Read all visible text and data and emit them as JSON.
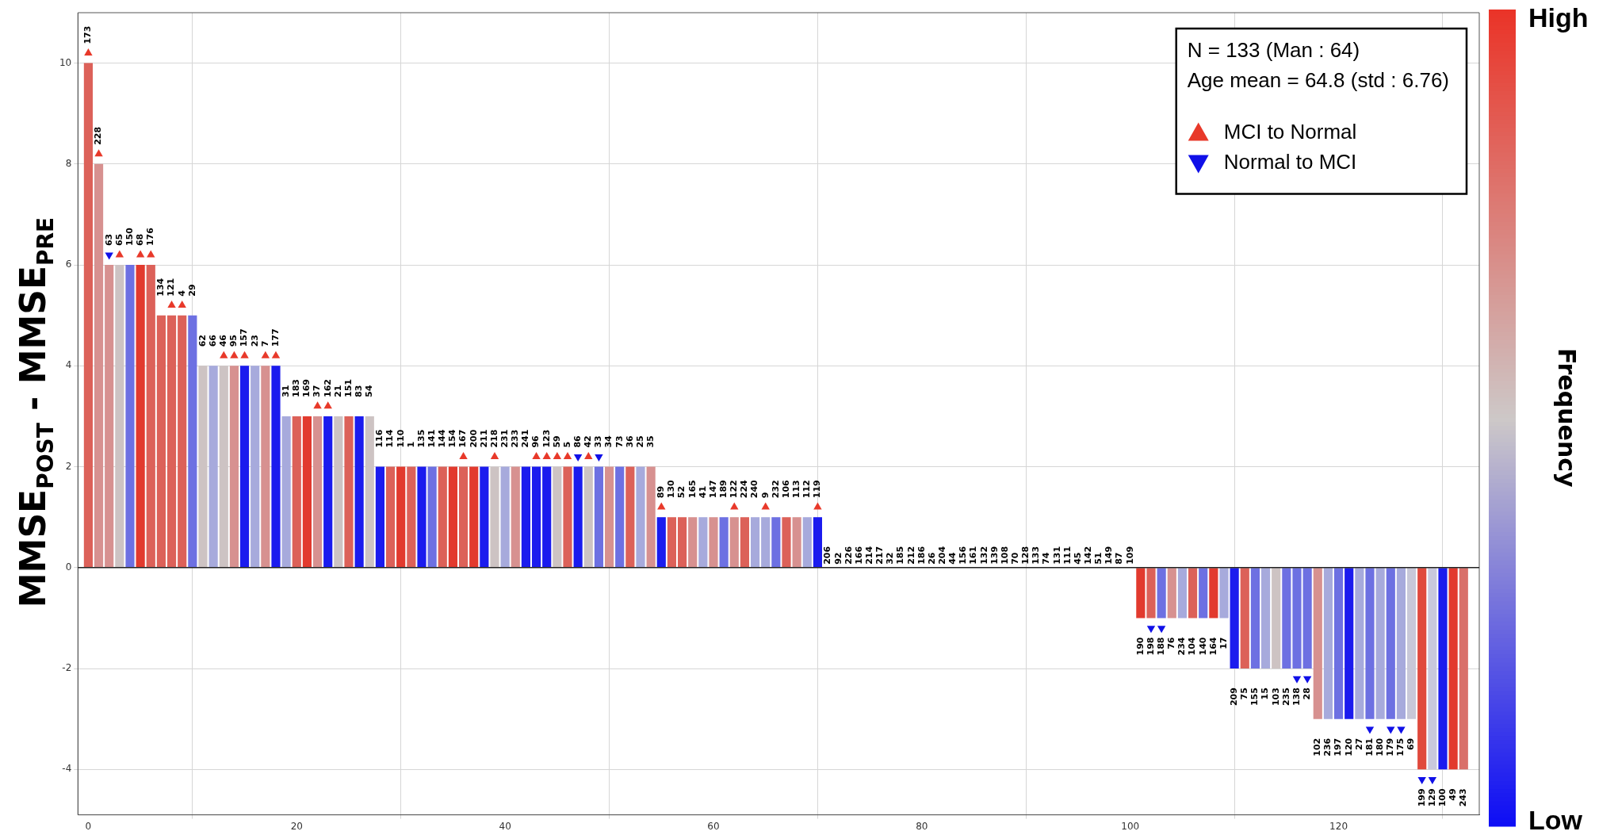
{
  "chart_data": {
    "type": "bar",
    "ylabel": "MMSE$_{POST}$ - MMSE$_{PRE}$",
    "clabel": "Frequency",
    "clim": [
      0,
      1
    ],
    "cticks": [
      {
        "value": 0,
        "label": "Low"
      },
      {
        "value": 1,
        "label": "High"
      }
    ],
    "annotations": [
      "N = 133 (Man : 64)",
      "Age mean = 64.8 (std : 6.76)",
      {
        "text": "173",
        "x": 0,
        "y": 10
      },
      {
        "text": "228",
        "x": 1,
        "y": 8
      },
      {
        "text": "63",
        "x": 2,
        "y": 6
      },
      {
        "text": "65",
        "x": 3,
        "y": 6
      },
      {
        "text": "150",
        "x": 4,
        "y": 6
      },
      {
        "text": "68",
        "x": 5,
        "y": 6
      },
      {
        "text": "176",
        "x": 6,
        "y": 6
      },
      {
        "text": "134",
        "x": 7,
        "y": 5
      },
      {
        "text": "121",
        "x": 8,
        "y": 5
      },
      {
        "text": "4",
        "x": 9,
        "y": 5
      },
      {
        "text": "29",
        "x": 10,
        "y": 5
      },
      {
        "text": "62",
        "x": 11,
        "y": 4
      },
      {
        "text": "66",
        "x": 12,
        "y": 4
      },
      {
        "text": "46",
        "x": 13,
        "y": 4
      },
      {
        "text": "95",
        "x": 14,
        "y": 4
      },
      {
        "text": "157",
        "x": 15,
        "y": 4
      },
      {
        "text": "23",
        "x": 16,
        "y": 4
      },
      {
        "text": "7",
        "x": 17,
        "y": 4
      },
      {
        "text": "177",
        "x": 18,
        "y": 4
      },
      {
        "text": "31",
        "x": 19,
        "y": 3
      },
      {
        "text": "183",
        "x": 20,
        "y": 3
      },
      {
        "text": "169",
        "x": 21,
        "y": 3
      },
      {
        "text": "37",
        "x": 22,
        "y": 3
      },
      {
        "text": "162",
        "x": 23,
        "y": 3
      },
      {
        "text": "21",
        "x": 24,
        "y": 3
      },
      {
        "text": "151",
        "x": 25,
        "y": 3
      },
      {
        "text": "83",
        "x": 26,
        "y": 3
      },
      {
        "text": "54",
        "x": 27,
        "y": 3
      },
      {
        "text": "116",
        "x": 28,
        "y": 2
      },
      {
        "text": "114",
        "x": 29,
        "y": 2
      },
      {
        "text": "110",
        "x": 30,
        "y": 2
      },
      {
        "text": "1",
        "x": 31,
        "y": 2
      },
      {
        "text": "135",
        "x": 32,
        "y": 2
      },
      {
        "text": "141",
        "x": 33,
        "y": 2
      },
      {
        "text": "144",
        "x": 34,
        "y": 2
      },
      {
        "text": "154",
        "x": 35,
        "y": 2
      },
      {
        "text": "167",
        "x": 36,
        "y": 2
      },
      {
        "text": "200",
        "x": 37,
        "y": 2
      },
      {
        "text": "211",
        "x": 38,
        "y": 2
      },
      {
        "text": "218",
        "x": 39,
        "y": 2
      },
      {
        "text": "231",
        "x": 40,
        "y": 2
      },
      {
        "text": "233",
        "x": 41,
        "y": 2
      },
      {
        "text": "241",
        "x": 42,
        "y": 2
      },
      {
        "text": "96",
        "x": 43,
        "y": 2
      },
      {
        "text": "123",
        "x": 44,
        "y": 2
      },
      {
        "text": "59",
        "x": 45,
        "y": 2
      },
      {
        "text": "5",
        "x": 46,
        "y": 2
      },
      {
        "text": "86",
        "x": 47,
        "y": 2
      },
      {
        "text": "42",
        "x": 48,
        "y": 2
      },
      {
        "text": "33",
        "x": 49,
        "y": 2
      },
      {
        "text": "34",
        "x": 50,
        "y": 2
      },
      {
        "text": "73",
        "x": 51,
        "y": 2
      },
      {
        "text": "36",
        "x": 52,
        "y": 2
      },
      {
        "text": "25",
        "x": 53,
        "y": 2
      },
      {
        "text": "35",
        "x": 54,
        "y": 2
      },
      {
        "text": "89",
        "x": 55,
        "y": 1
      },
      {
        "text": "130",
        "x": 56,
        "y": 1
      },
      {
        "text": "52",
        "x": 57,
        "y": 1
      },
      {
        "text": "165",
        "x": 58,
        "y": 1
      },
      {
        "text": "41",
        "x": 59,
        "y": 1
      },
      {
        "text": "147",
        "x": 60,
        "y": 1
      },
      {
        "text": "189",
        "x": 61,
        "y": 1
      },
      {
        "text": "122",
        "x": 62,
        "y": 1
      },
      {
        "text": "224",
        "x": 63,
        "y": 1
      },
      {
        "text": "240",
        "x": 64,
        "y": 1
      },
      {
        "text": "9",
        "x": 65,
        "y": 1
      },
      {
        "text": "232",
        "x": 66,
        "y": 1
      },
      {
        "text": "106",
        "x": 67,
        "y": 1
      },
      {
        "text": "113",
        "x": 68,
        "y": 1
      },
      {
        "text": "112",
        "x": 69,
        "y": 1
      },
      {
        "text": "119",
        "x": 70,
        "y": 1
      },
      {
        "text": "206",
        "x": 71,
        "y": 0
      },
      {
        "text": "92",
        "x": 72,
        "y": 0
      },
      {
        "text": "226",
        "x": 73,
        "y": 0
      },
      {
        "text": "166",
        "x": 74,
        "y": 0
      },
      {
        "text": "214",
        "x": 75,
        "y": 0
      },
      {
        "text": "217",
        "x": 76,
        "y": 0
      },
      {
        "text": "32",
        "x": 77,
        "y": 0
      },
      {
        "text": "185",
        "x": 78,
        "y": 0
      },
      {
        "text": "212",
        "x": 79,
        "y": 0
      },
      {
        "text": "186",
        "x": 80,
        "y": 0
      },
      {
        "text": "26",
        "x": 81,
        "y": 0
      },
      {
        "text": "204",
        "x": 82,
        "y": 0
      },
      {
        "text": "44",
        "x": 83,
        "y": 0
      },
      {
        "text": "156",
        "x": 84,
        "y": 0
      },
      {
        "text": "161",
        "x": 85,
        "y": 0
      },
      {
        "text": "132",
        "x": 86,
        "y": 0
      },
      {
        "text": "139",
        "x": 87,
        "y": 0
      },
      {
        "text": "108",
        "x": 88,
        "y": 0
      },
      {
        "text": "70",
        "x": 89,
        "y": 0
      },
      {
        "text": "128",
        "x": 90,
        "y": 0
      },
      {
        "text": "133",
        "x": 91,
        "y": 0
      },
      {
        "text": "74",
        "x": 92,
        "y": 0
      },
      {
        "text": "131",
        "x": 93,
        "y": 0
      },
      {
        "text": "111",
        "x": 94,
        "y": 0
      },
      {
        "text": "45",
        "x": 95,
        "y": 0
      },
      {
        "text": "142",
        "x": 96,
        "y": 0
      },
      {
        "text": "51",
        "x": 97,
        "y": 0
      },
      {
        "text": "149",
        "x": 98,
        "y": 0
      },
      {
        "text": "87",
        "x": 99,
        "y": 0
      },
      {
        "text": "109",
        "x": 100,
        "y": 0
      },
      {
        "text": "190",
        "x": 101,
        "y": -1
      },
      {
        "text": "198",
        "x": 102,
        "y": -1
      },
      {
        "text": "188",
        "x": 103,
        "y": -1
      },
      {
        "text": "76",
        "x": 104,
        "y": -1
      },
      {
        "text": "234",
        "x": 105,
        "y": -1
      },
      {
        "text": "104",
        "x": 106,
        "y": -1
      },
      {
        "text": "140",
        "x": 107,
        "y": -1
      },
      {
        "text": "164",
        "x": 108,
        "y": -1
      },
      {
        "text": "17",
        "x": 109,
        "y": -1
      },
      {
        "text": "209",
        "x": 110,
        "y": -2
      },
      {
        "text": "75",
        "x": 111,
        "y": -2
      },
      {
        "text": "155",
        "x": 112,
        "y": -2
      },
      {
        "text": "15",
        "x": 113,
        "y": -2
      },
      {
        "text": "103",
        "x": 114,
        "y": -2
      },
      {
        "text": "235",
        "x": 115,
        "y": -2
      },
      {
        "text": "138",
        "x": 116,
        "y": -2
      },
      {
        "text": "28",
        "x": 117,
        "y": -2
      },
      {
        "text": "102",
        "x": 118,
        "y": -3
      },
      {
        "text": "236",
        "x": 119,
        "y": -3
      },
      {
        "text": "197",
        "x": 120,
        "y": -3
      },
      {
        "text": "120",
        "x": 121,
        "y": -3
      },
      {
        "text": "27",
        "x": 122,
        "y": -3
      },
      {
        "text": "181",
        "x": 123,
        "y": -3
      },
      {
        "text": "180",
        "x": 124,
        "y": -3
      },
      {
        "text": "179",
        "x": 125,
        "y": -3
      },
      {
        "text": "175",
        "x": 126,
        "y": -3
      },
      {
        "text": "69",
        "x": 127,
        "y": -3
      },
      {
        "text": "199",
        "x": 128,
        "y": -4
      },
      {
        "text": "129",
        "x": 129,
        "y": -4
      },
      {
        "text": "100",
        "x": 130,
        "y": -4
      },
      {
        "text": "49",
        "x": 131,
        "y": -4
      },
      {
        "text": "243",
        "x": 132,
        "y": -4
      }
    ],
    "xlim": [
      -1,
      133.5
    ],
    "xticks": [
      0,
      20,
      40,
      60,
      80,
      100,
      120
    ],
    "ylim": [
      -4.9,
      11
    ],
    "yticks": [
      -4,
      -2,
      0,
      2,
      4,
      6,
      8,
      10
    ],
    "grid": true,
    "legend": "top right",
    "series": [
      {
        "x": [
          0,
          1,
          2,
          3,
          4,
          5,
          6,
          7,
          8,
          9,
          10,
          11,
          12,
          13,
          14,
          15,
          16,
          17,
          18,
          19,
          20,
          21,
          22,
          23,
          24,
          25,
          26,
          27,
          28,
          29,
          30,
          31,
          32,
          33,
          34,
          35,
          36,
          37,
          38,
          39,
          40,
          41,
          42,
          43,
          44,
          45,
          46,
          47,
          48,
          49,
          50,
          51,
          52,
          53,
          54,
          55,
          56,
          57,
          58,
          59,
          60,
          61,
          62,
          63,
          64,
          65,
          66,
          67,
          68,
          69,
          70,
          71,
          72,
          73,
          74,
          75,
          76,
          77,
          78,
          79,
          80,
          81,
          82,
          83,
          84,
          85,
          86,
          87,
          88,
          89,
          90,
          91,
          92,
          93,
          94,
          95,
          96,
          97,
          98,
          99,
          100,
          101,
          102,
          103,
          104,
          105,
          106,
          107,
          108,
          109,
          110,
          111,
          112,
          113,
          114,
          115,
          116,
          117,
          118,
          119,
          120,
          121,
          122,
          123,
          124,
          125,
          126,
          127,
          128,
          129,
          130,
          131,
          132
        ],
        "values": [
          10,
          8,
          6,
          6,
          6,
          6,
          6,
          5,
          5,
          5,
          5,
          4,
          4,
          4,
          4,
          4,
          4,
          4,
          4,
          3,
          3,
          3,
          3,
          3,
          3,
          3,
          3,
          3,
          2,
          2,
          2,
          2,
          2,
          2,
          2,
          2,
          2,
          2,
          2,
          2,
          2,
          2,
          2,
          2,
          2,
          2,
          2,
          2,
          2,
          2,
          2,
          2,
          2,
          2,
          2,
          1,
          1,
          1,
          1,
          1,
          1,
          1,
          1,
          1,
          1,
          1,
          1,
          1,
          1,
          1,
          1,
          0,
          0,
          0,
          0,
          0,
          0,
          0,
          0,
          0,
          0,
          0,
          0,
          0,
          0,
          0,
          0,
          0,
          0,
          0,
          0,
          0,
          0,
          0,
          0,
          0,
          0,
          0,
          0,
          0,
          0,
          -1,
          -1,
          -1,
          -1,
          -1,
          -1,
          -1,
          -1,
          -1,
          -2,
          -2,
          -2,
          -2,
          -2,
          -2,
          -2,
          -2,
          -3,
          -3,
          -3,
          -3,
          -3,
          -3,
          -3,
          -3,
          -3,
          -3,
          -4,
          -4,
          -4,
          -4,
          -4
        ],
        "colors": [
          "#dc6159",
          "#d79190",
          "#d79190",
          "#cdc3c3",
          "#6d70e2",
          "#e23a2e",
          "#dc6159",
          "#dc6159",
          "#dc6159",
          "#dc6159",
          "#6d70e2",
          "#cdc3c3",
          "#a7aadc",
          "#cdc3c3",
          "#d79190",
          "#1b1bee",
          "#a7aadc",
          "#d79190",
          "#1b1bee",
          "#a7aadc",
          "#dc6159",
          "#e23a2e",
          "#d79190",
          "#1b1bee",
          "#cdc3c3",
          "#dc6159",
          "#1b1bee",
          "#cdc3c3",
          "#1b1bee",
          "#dc6159",
          "#e23a2e",
          "#dc6159",
          "#1b1bee",
          "#6d70e2",
          "#dc6159",
          "#e23a2e",
          "#dc6159",
          "#e23a2e",
          "#1b1bee",
          "#cdc3c3",
          "#a7aadc",
          "#d79190",
          "#1b1bee",
          "#1b1bee",
          "#1b1bee",
          "#cdc3c3",
          "#dc6159",
          "#1b1bee",
          "#cdc3c3",
          "#6d70e2",
          "#d79190",
          "#6d70e2",
          "#dc6159",
          "#a7aadc",
          "#d79190",
          "#1b1bee",
          "#dc6159",
          "#dc6159",
          "#d79190",
          "#a7aadc",
          "#d79190",
          "#6d70e2",
          "#d79190",
          "#dc6159",
          "#a7aadc",
          "#a7aadc",
          "#6d70e2",
          "#dc6159",
          "#d79190",
          "#a7aadc",
          "#1b1bee",
          "#cccccc",
          "#cccccc",
          "#cccccc",
          "#cccccc",
          "#cccccc",
          "#cccccc",
          "#cccccc",
          "#cccccc",
          "#cccccc",
          "#cccccc",
          "#cccccc",
          "#cccccc",
          "#cccccc",
          "#cccccc",
          "#cccccc",
          "#cccccc",
          "#cccccc",
          "#cccccc",
          "#cccccc",
          "#cccccc",
          "#cccccc",
          "#cccccc",
          "#cccccc",
          "#cccccc",
          "#cccccc",
          "#cccccc",
          "#cccccc",
          "#cccccc",
          "#cccccc",
          "#cccccc",
          "#e23a2e",
          "#dc6159",
          "#6d70e2",
          "#d79190",
          "#a7aadc",
          "#dc6159",
          "#6d70e2",
          "#e23a2e",
          "#a7aadc",
          "#1b1bee",
          "#dc6159",
          "#6d70e2",
          "#a7aadc",
          "#cdc3c3",
          "#6d70e2",
          "#6d70e2",
          "#6d70e2",
          "#d79190",
          "#a7aadc",
          "#6d70e2",
          "#1b1bee",
          "#a7aadc",
          "#6d70e2",
          "#a7aadc",
          "#6d70e2",
          "#a7aadc",
          "#c8c8d8",
          "#e0493c",
          "#c8c8dc",
          "#1b1bee",
          "#e23a2e",
          "#d9706a"
        ]
      },
      {
        "type": "scatter",
        "name": "MCI to Normal",
        "color": "#e8392a",
        "marker": "triangle",
        "x": [
          0,
          1,
          3,
          5,
          6,
          8,
          9,
          13,
          14,
          15,
          17,
          18,
          22,
          23,
          36,
          39,
          43,
          44,
          45,
          46,
          48,
          55,
          62,
          65,
          70
        ],
        "values": [
          10.2,
          8.2,
          6.2,
          6.2,
          6.2,
          5.2,
          5.2,
          4.2,
          4.2,
          4.2,
          4.2,
          4.2,
          3.2,
          3.2,
          2.2,
          2.2,
          2.2,
          2.2,
          2.2,
          2.2,
          2.2,
          1.2,
          1.2,
          1.2,
          1.2
        ]
      },
      {
        "type": "scatter",
        "name": "Normal to MCI",
        "color": "#1010e8",
        "marker": "triangle-down",
        "x": [
          2,
          47,
          49,
          102,
          103,
          116,
          117,
          123,
          125,
          126,
          128,
          129
        ],
        "values": [
          6.2,
          2.2,
          2.2,
          -1.2,
          -1.2,
          -2.2,
          -2.2,
          -3.2,
          -3.2,
          -3.2,
          -4.2,
          -4.2
        ]
      }
    ]
  }
}
